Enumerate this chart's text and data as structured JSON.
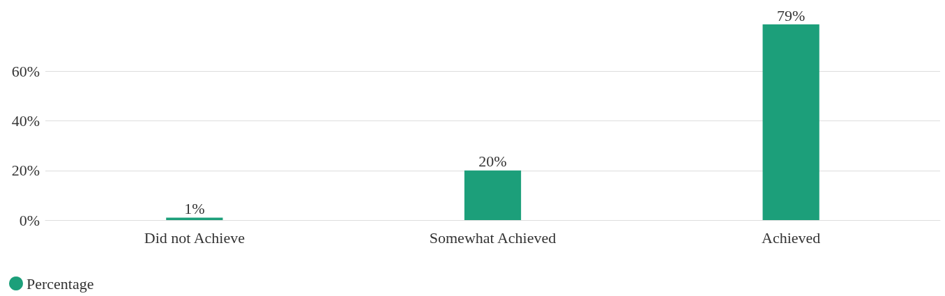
{
  "chart_data": {
    "type": "bar",
    "categories": [
      "Did not Achieve",
      "Somewhat Achieved",
      "Achieved"
    ],
    "series": [
      {
        "name": "Percentage",
        "color": "#1c9f7a",
        "values": [
          1,
          20,
          79
        ],
        "value_labels": [
          "1%",
          "20%",
          "79%"
        ]
      }
    ],
    "ylim": [
      0,
      79
    ],
    "yticks": [
      {
        "value": 0,
        "label": "0%"
      },
      {
        "value": 20,
        "label": "20%"
      },
      {
        "value": 40,
        "label": "40%"
      },
      {
        "value": 60,
        "label": "60%"
      }
    ],
    "grid": "y",
    "legend": "bottom left",
    "marker": "circle"
  }
}
